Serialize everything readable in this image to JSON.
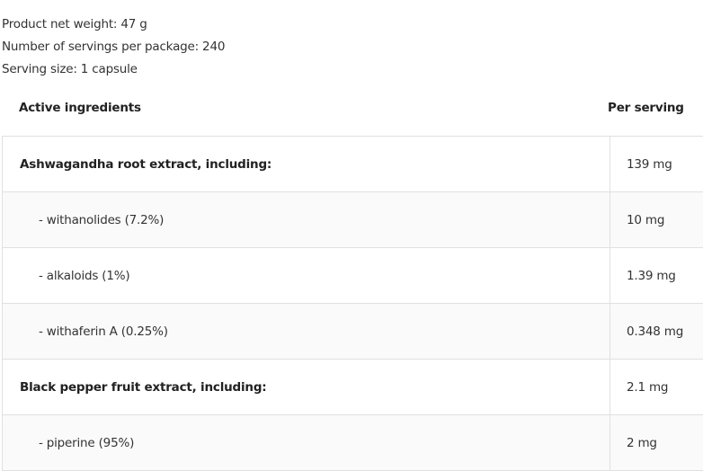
{
  "info": {
    "net_weight": "Product net weight: 47 g",
    "servings": "Number of servings per package: 240",
    "serving_size": "Serving size: 1 capsule"
  },
  "table": {
    "headers": [
      "Active ingredients",
      "Per serving"
    ],
    "rows": [
      {
        "name": "Ashwagandha root extract, including:",
        "value": "139 mg"
      },
      {
        "name": "- withanolides (7.2%)",
        "value": "10 mg"
      },
      {
        "name": "- alkaloids (1%)",
        "value": "1.39 mg"
      },
      {
        "name": "- withaferin A (0.25%)",
        "value": "0.348 mg"
      },
      {
        "name": "Black pepper fruit extract, including:",
        "value": "2.1 mg"
      },
      {
        "name": "- piperine (95%)",
        "value": "2 mg"
      }
    ]
  }
}
